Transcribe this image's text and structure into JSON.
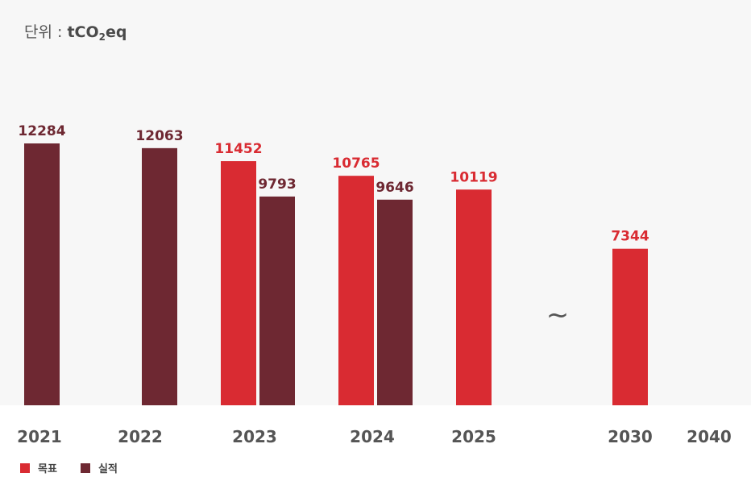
{
  "unit": {
    "prefix": "단위 : ",
    "main": "tCO",
    "sub": "2",
    "suffix": "eq"
  },
  "gap_symbol": "~",
  "colors": {
    "target": "#d92b32",
    "actual": "#6e2832",
    "background": "#f7f7f7",
    "year_text": "#555555"
  },
  "chart_data": {
    "type": "bar",
    "categories": [
      "2021",
      "2022",
      "2023",
      "2024",
      "2025",
      "2030",
      "2040"
    ],
    "series": [
      {
        "name": "목표",
        "color": "#d92b32",
        "values": [
          null,
          null,
          11452,
          10765,
          10119,
          7344,
          null
        ]
      },
      {
        "name": "실적",
        "color": "#6e2832",
        "values": [
          12284,
          12063,
          9793,
          9646,
          null,
          null,
          null
        ]
      }
    ],
    "ylim": [
      0,
      12284
    ],
    "grid": false,
    "legend": "bottom-left"
  }
}
